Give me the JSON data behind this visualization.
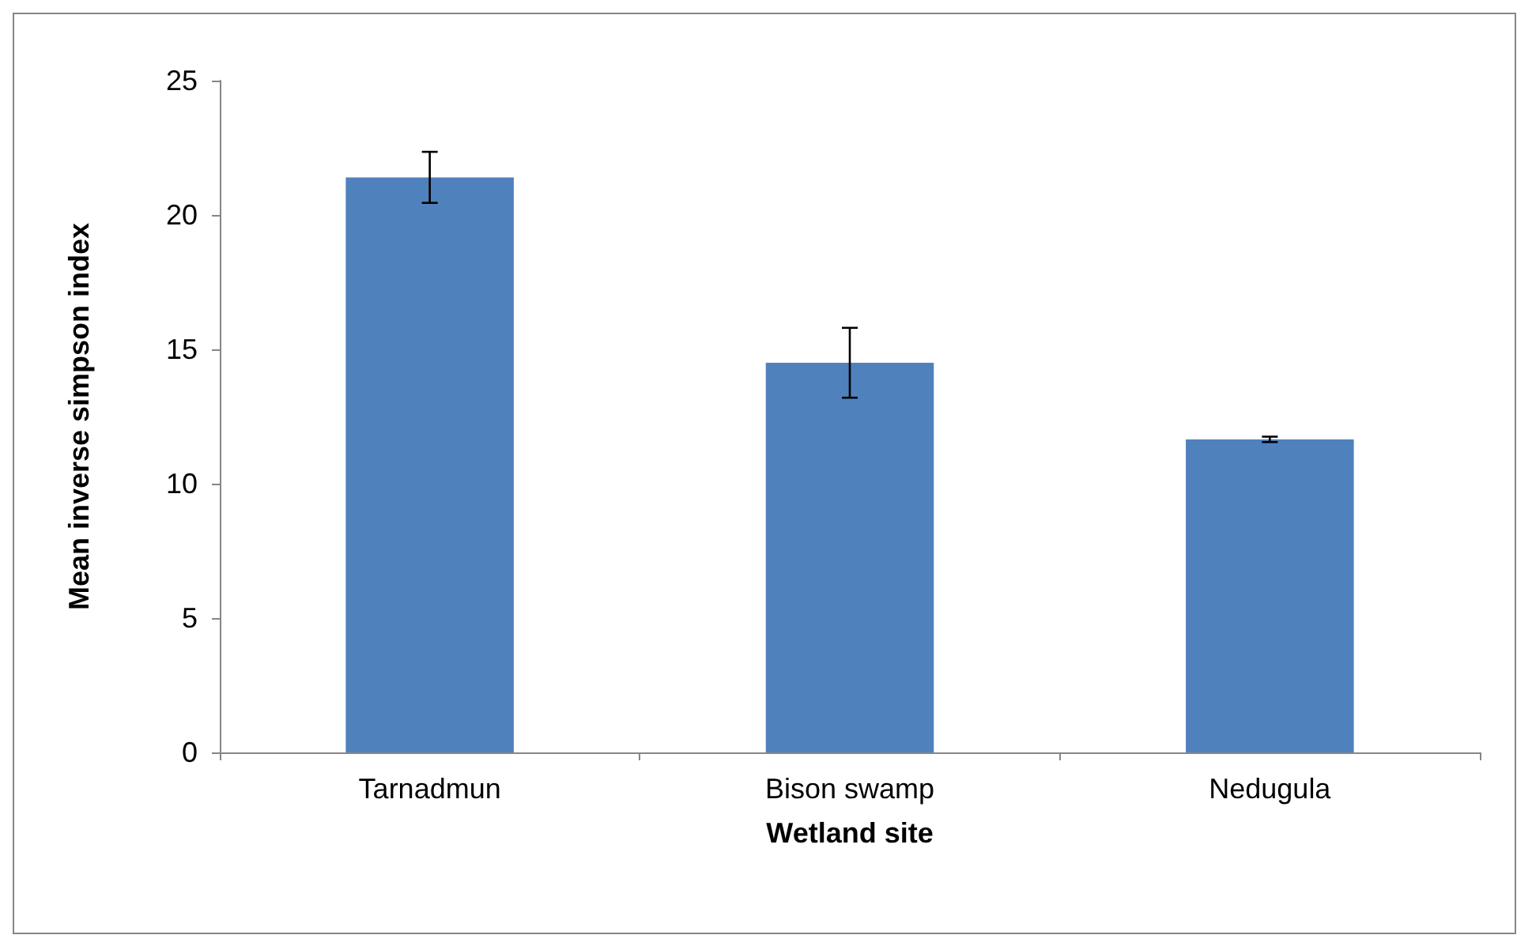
{
  "chart_data": {
    "type": "bar",
    "xlabel": "Wetland site",
    "ylabel": "Mean inverse simpson index",
    "categories": [
      "Tarnadmun",
      "Bison swamp",
      "Nedugula"
    ],
    "values": [
      21.4,
      14.5,
      11.65
    ],
    "errors": [
      0.95,
      1.3,
      0.1
    ],
    "color": "#4f81bd",
    "ylim": [
      0,
      25
    ],
    "yticks": [
      0,
      5,
      10,
      15,
      20,
      25
    ],
    "grid": false
  }
}
